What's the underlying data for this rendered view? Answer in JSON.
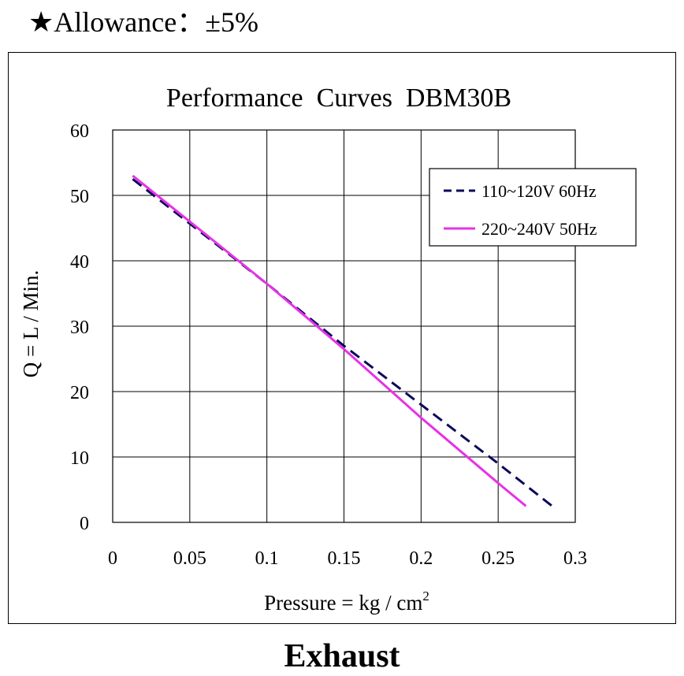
{
  "header": {
    "allowance": "★Allowance：±5%"
  },
  "footer": {
    "label": "Exhaust"
  },
  "chart_data": {
    "type": "line",
    "title": "Performance  Curves  DBM30B",
    "xlabel": "Pressure = kg / cm",
    "xlabel_sup": "2",
    "ylabel": "Q = L / Min.",
    "xlim": [
      0,
      0.3
    ],
    "ylim": [
      0,
      60
    ],
    "xticks": [
      0,
      0.05,
      0.1,
      0.15,
      0.2,
      0.25,
      0.3
    ],
    "xtick_labels": [
      "0",
      "0.05",
      "0.1",
      "0.15",
      "0.2",
      "0.25",
      "0.3"
    ],
    "yticks": [
      0,
      10,
      20,
      30,
      40,
      50,
      60
    ],
    "ytick_labels": [
      "0",
      "10",
      "20",
      "30",
      "40",
      "50",
      "60"
    ],
    "grid": true,
    "legend_position": "top-right",
    "series": [
      {
        "name": "110~120V 60Hz",
        "color": "#0a0a5a",
        "style": "dashed",
        "x": [
          0.013,
          0.1,
          0.15,
          0.2,
          0.25,
          0.285
        ],
        "y": [
          52.5,
          36.5,
          27,
          18,
          9,
          2.5
        ]
      },
      {
        "name": "220~240V 50Hz",
        "color": "#e633e6",
        "style": "solid",
        "x": [
          0.013,
          0.05,
          0.1,
          0.15,
          0.2,
          0.25,
          0.268
        ],
        "y": [
          53,
          46,
          36.5,
          26.5,
          16,
          6,
          2.5
        ]
      }
    ]
  }
}
